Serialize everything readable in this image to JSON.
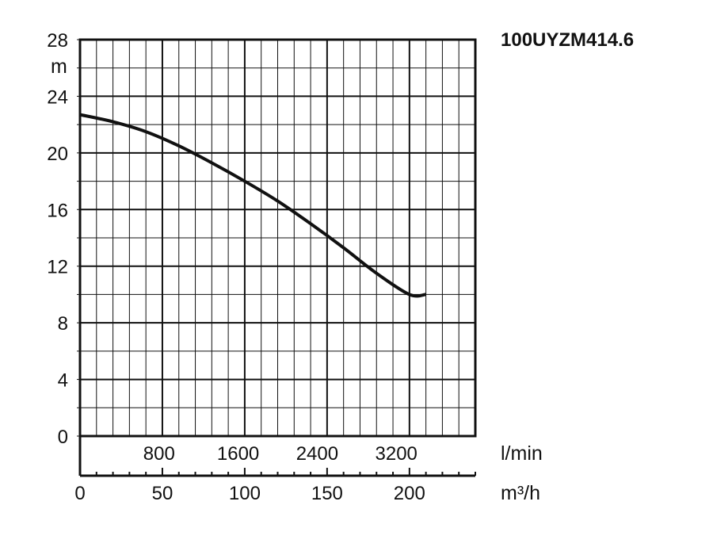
{
  "chart_data": {
    "type": "line",
    "title": "100UYZM414.6",
    "y_unit": "m",
    "ylim": [
      0,
      28
    ],
    "y_ticks": [
      "0",
      "4",
      "8",
      "12",
      "16",
      "20",
      "24",
      "28"
    ],
    "x_unit": "m³/h",
    "xlim": [
      0,
      240
    ],
    "x_ticks": [
      "0",
      "50",
      "100",
      "150",
      "200"
    ],
    "x2_unit": "l/min",
    "x2_ticks": [
      "800",
      "1600",
      "2400",
      "3200"
    ],
    "x2_tick_values_m3h": [
      48,
      96,
      144,
      192
    ],
    "grid": true,
    "series": [
      {
        "x": [
          0,
          20,
          40,
          60,
          80,
          100,
          120,
          140,
          160,
          180,
          200,
          210
        ],
        "y": [
          22.7,
          22.2,
          21.5,
          20.5,
          19.3,
          18.0,
          16.6,
          15.0,
          13.3,
          11.5,
          10.0,
          10.0
        ]
      }
    ]
  }
}
